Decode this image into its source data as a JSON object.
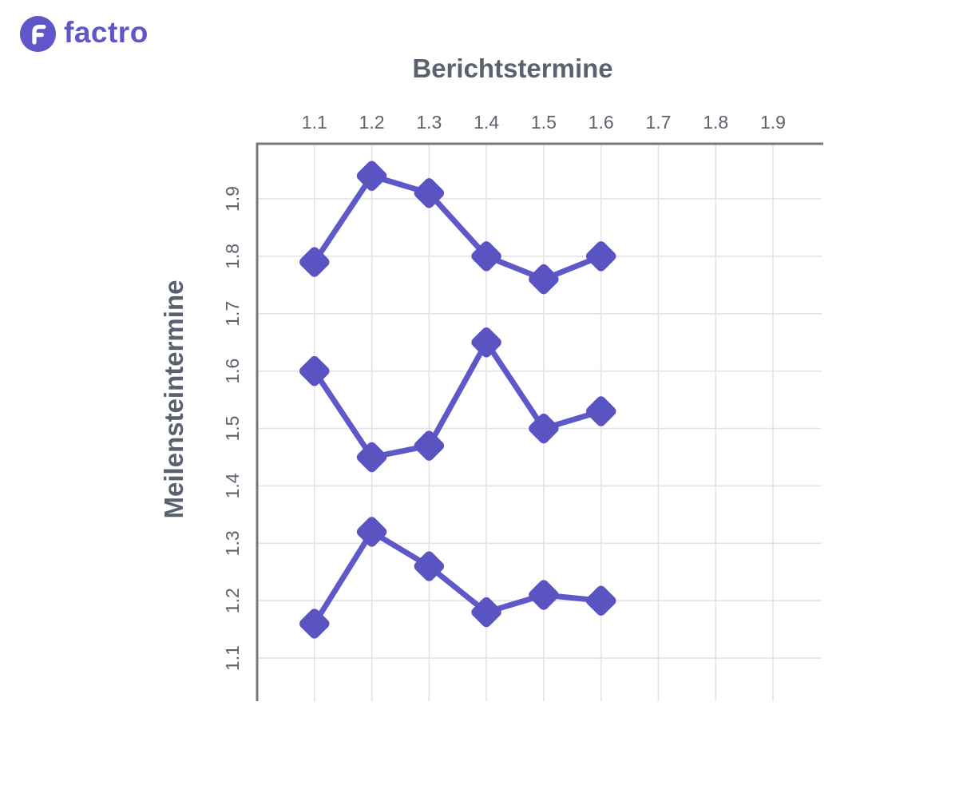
{
  "logo": {
    "wordmark": "factro",
    "icon_letter": "F"
  },
  "colors": {
    "brand_purple": "#6156C8",
    "series_line": "#5E58C8",
    "series_marker": "#5A54C2",
    "grid": "#E2E3E5",
    "axis": "#75787C",
    "tick_text": "#5C636D",
    "title_text": "#5A6270",
    "background": "#FFFFFF"
  },
  "chart_data": {
    "type": "line",
    "title": "Berichtstermine",
    "xlabel": "",
    "ylabel": "Meilensteintermine",
    "x_ticks": [
      "1.1",
      "1.2",
      "1.3",
      "1.4",
      "1.5",
      "1.6",
      "1.7",
      "1.8",
      "1.9"
    ],
    "y_ticks": [
      "1.9",
      "1.8",
      "1.7",
      "1.6",
      "1.5",
      "1.4",
      "1.3",
      "1.2",
      "1.1"
    ],
    "x": [
      1.1,
      1.2,
      1.3,
      1.4,
      1.5,
      1.6
    ],
    "series": [
      {
        "values": [
          1.79,
          1.94,
          1.91,
          1.8,
          1.76,
          1.8
        ]
      },
      {
        "values": [
          1.6,
          1.45,
          1.47,
          1.65,
          1.5,
          1.53
        ]
      },
      {
        "values": [
          1.16,
          1.32,
          1.26,
          1.18,
          1.21,
          1.2
        ]
      }
    ],
    "xlim": [
      1.0,
      1.985
    ],
    "ylim": [
      1.025,
      1.996
    ],
    "grid": true,
    "legend": false,
    "marker": "diamond",
    "x_axis_position": "top"
  }
}
